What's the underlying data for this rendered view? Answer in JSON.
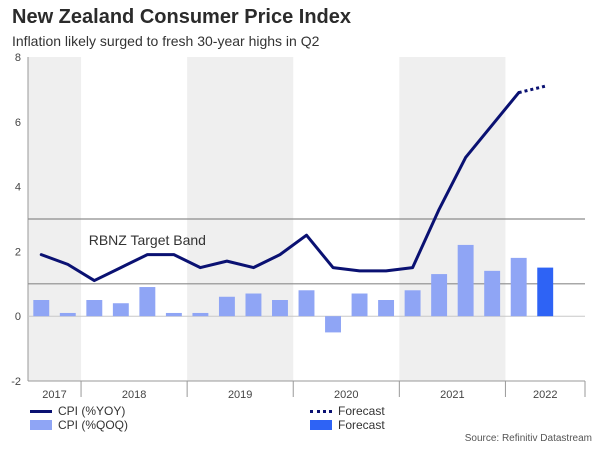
{
  "title": "New Zealand Consumer Price Index",
  "subtitle": "Inflation likely surged to fresh 30-year highs in Q2",
  "source": "Source: Refinitiv Datastream",
  "chart_data": {
    "type": "line",
    "x": [
      "2017 Q2",
      "2017 Q3",
      "2017 Q4",
      "2018 Q1",
      "2018 Q2",
      "2018 Q3",
      "2018 Q4",
      "2019 Q1",
      "2019 Q2",
      "2019 Q3",
      "2019 Q4",
      "2020 Q1",
      "2020 Q2",
      "2020 Q3",
      "2020 Q4",
      "2021 Q1",
      "2021 Q2",
      "2021 Q3",
      "2021 Q4",
      "2022 Q1",
      "2022 Q2"
    ],
    "years": [
      {
        "label": "2017",
        "start": 0,
        "end": 1
      },
      {
        "label": "2018",
        "start": 2,
        "end": 5
      },
      {
        "label": "2019",
        "start": 6,
        "end": 9
      },
      {
        "label": "2020",
        "start": 10,
        "end": 13
      },
      {
        "label": "2021",
        "start": 14,
        "end": 17
      },
      {
        "label": "2022",
        "start": 18,
        "end": 20
      }
    ],
    "series": [
      {
        "name": "CPI (%YOY)",
        "type": "line",
        "color": "#0a1172",
        "values": [
          1.9,
          1.6,
          1.1,
          1.5,
          1.9,
          1.9,
          1.5,
          1.7,
          1.5,
          1.9,
          2.5,
          1.5,
          1.4,
          1.4,
          1.5,
          3.3,
          4.9,
          5.9,
          6.9,
          null,
          null
        ]
      },
      {
        "name": "Forecast",
        "type": "line-dotted",
        "color": "#0a1172",
        "values": [
          null,
          null,
          null,
          null,
          null,
          null,
          null,
          null,
          null,
          null,
          null,
          null,
          null,
          null,
          null,
          null,
          null,
          null,
          6.9,
          7.1,
          null
        ]
      },
      {
        "name": "CPI (%QOQ)",
        "type": "bar",
        "color": "#8fa5f5",
        "values": [
          0.5,
          0.1,
          0.5,
          0.4,
          0.9,
          0.1,
          0.1,
          0.6,
          0.7,
          0.5,
          0.8,
          -0.5,
          0.7,
          0.5,
          0.8,
          1.3,
          2.2,
          1.4,
          1.8,
          null,
          null
        ]
      },
      {
        "name": "Forecast",
        "type": "bar",
        "color": "#2e63f5",
        "values": [
          null,
          null,
          null,
          null,
          null,
          null,
          null,
          null,
          null,
          null,
          null,
          null,
          null,
          null,
          null,
          null,
          null,
          null,
          null,
          1.5,
          null
        ]
      }
    ],
    "target_band": {
      "label": "RBNZ Target Band",
      "low": 1,
      "high": 3
    },
    "ylim": [
      -2,
      8
    ],
    "yticks": [
      -2,
      0,
      2,
      4,
      6,
      8
    ],
    "grid": false,
    "legend_position": "bottom-left"
  }
}
